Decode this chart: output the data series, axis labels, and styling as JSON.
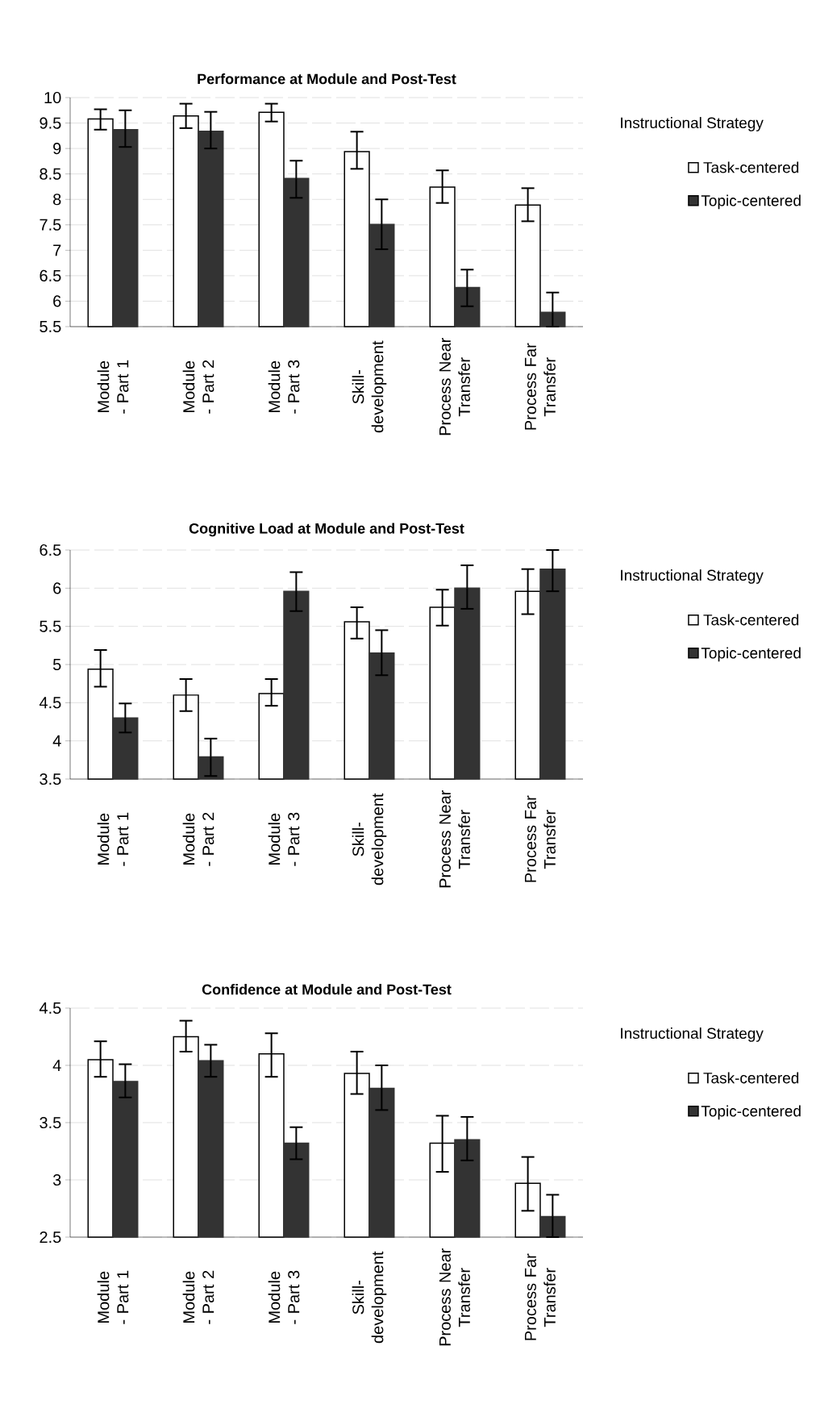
{
  "chart_data": [
    {
      "type": "bar",
      "title": "Performance at Module and Post-Test",
      "categories": [
        "Module - Part 1",
        "Module - Part 2",
        "Module - Part 3",
        "Skill-development",
        "Process Near Transfer",
        "Process Far Transfer"
      ],
      "series": [
        {
          "name": "Task-centered",
          "color": "#ffffff",
          "values": [
            9.58,
            9.64,
            9.71,
            8.94,
            8.24,
            7.89
          ],
          "errors": [
            [
              9.37,
              9.77
            ],
            [
              9.4,
              9.88
            ],
            [
              9.53,
              9.88
            ],
            [
              8.6,
              9.33
            ],
            [
              7.93,
              8.57
            ],
            [
              7.57,
              8.22
            ]
          ]
        },
        {
          "name": "Topic-centered",
          "color": "#333333",
          "values": [
            9.37,
            9.34,
            8.41,
            7.51,
            6.27,
            5.78
          ],
          "errors": [
            [
              9.03,
              9.75
            ],
            [
              9.0,
              9.72
            ],
            [
              8.03,
              8.76
            ],
            [
              7.02,
              8.0
            ],
            [
              5.9,
              6.62
            ],
            [
              5.5,
              6.17
            ]
          ]
        }
      ],
      "ylim": [
        5.5,
        10
      ],
      "yticks": [
        5.5,
        6,
        6.5,
        7,
        7.5,
        8,
        8.5,
        9,
        9.5,
        10
      ],
      "grid": "y",
      "legend": "right",
      "legend_title": "Instructional Strategy"
    },
    {
      "type": "bar",
      "title": "Cognitive Load at Module and Post-Test",
      "categories": [
        "Module - Part 1",
        "Module - Part 2",
        "Module - Part 3",
        "Skill-development",
        "Process Near Transfer",
        "Process Far Transfer"
      ],
      "series": [
        {
          "name": "Task-centered",
          "color": "#ffffff",
          "values": [
            4.94,
            4.6,
            4.62,
            5.56,
            5.75,
            5.96
          ],
          "errors": [
            [
              4.71,
              5.19
            ],
            [
              4.39,
              4.81
            ],
            [
              4.46,
              4.81
            ],
            [
              5.34,
              5.75
            ],
            [
              5.51,
              5.98
            ],
            [
              5.66,
              6.25
            ]
          ]
        },
        {
          "name": "Topic-centered",
          "color": "#333333",
          "values": [
            4.3,
            3.79,
            5.96,
            5.15,
            6.0,
            6.25
          ],
          "errors": [
            [
              4.11,
              4.49
            ],
            [
              3.54,
              4.03
            ],
            [
              5.7,
              6.21
            ],
            [
              4.86,
              5.45
            ],
            [
              5.73,
              6.3
            ],
            [
              5.96,
              6.5
            ]
          ]
        }
      ],
      "ylim": [
        3.5,
        6.5
      ],
      "yticks": [
        3.5,
        4,
        4.5,
        5,
        5.5,
        6,
        6.5
      ],
      "grid": "y",
      "legend": "right",
      "legend_title": "Instructional Strategy"
    },
    {
      "type": "bar",
      "title": "Confidence at Module and Post-Test",
      "categories": [
        "Module - Part 1",
        "Module - Part 2",
        "Module - Part 3",
        "Skill-development",
        "Process Near Transfer",
        "Process Far Transfer"
      ],
      "series": [
        {
          "name": "Task-centered",
          "color": "#ffffff",
          "values": [
            4.05,
            4.25,
            4.1,
            3.93,
            3.32,
            2.97
          ],
          "errors": [
            [
              3.9,
              4.21
            ],
            [
              4.12,
              4.39
            ],
            [
              3.9,
              4.28
            ],
            [
              3.75,
              4.12
            ],
            [
              3.07,
              3.56
            ],
            [
              2.73,
              3.2
            ]
          ]
        },
        {
          "name": "Topic-centered",
          "color": "#333333",
          "values": [
            3.86,
            4.04,
            3.32,
            3.8,
            3.35,
            2.68
          ],
          "errors": [
            [
              3.72,
              4.01
            ],
            [
              3.9,
              4.18
            ],
            [
              3.18,
              3.46
            ],
            [
              3.61,
              4.0
            ],
            [
              3.17,
              3.55
            ],
            [
              2.5,
              2.87
            ]
          ]
        }
      ],
      "ylim": [
        2.5,
        4.5
      ],
      "yticks": [
        2.5,
        3,
        3.5,
        4,
        4.5
      ],
      "grid": "y",
      "legend": "right",
      "legend_title": "Instructional Strategy"
    }
  ]
}
